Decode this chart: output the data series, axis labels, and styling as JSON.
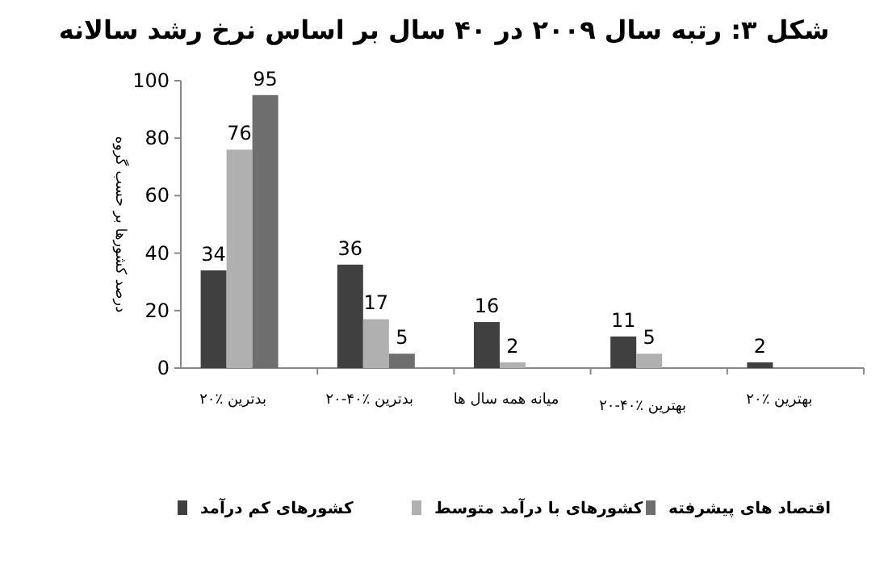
{
  "chart_data": {
    "type": "bar",
    "title": "شکل ۳: رتبه سال ۲۰۰۹ در ۴۰ سال بر اساس نرخ رشد سالانه",
    "ylabel": "درصد کشورها بر حسب گروه",
    "categories": [
      "۲۰٪ بدترین",
      "۲۰-۴۰٪ بدترین",
      "میانه همه سال ها",
      "۲۰-۴۰٪ بهترین",
      "۲۰٪ بهترین"
    ],
    "series": [
      {
        "name": "کشورهای کم درآمد",
        "color": "#404040",
        "values": [
          34,
          36,
          16,
          11,
          2
        ]
      },
      {
        "name": "کشورهای با درآمد متوسط",
        "color": "#b0b0b0",
        "values": [
          76,
          17,
          2,
          5,
          null
        ]
      },
      {
        "name": "اقتصاد های پیشرفته",
        "color": "#6e6e6e",
        "values": [
          95,
          5,
          null,
          null,
          null
        ]
      }
    ],
    "ylim": [
      0,
      100
    ],
    "yticks": [
      0,
      20,
      40,
      60,
      80,
      100
    ],
    "data_labels": true,
    "grid": false,
    "legend": "bottom"
  }
}
